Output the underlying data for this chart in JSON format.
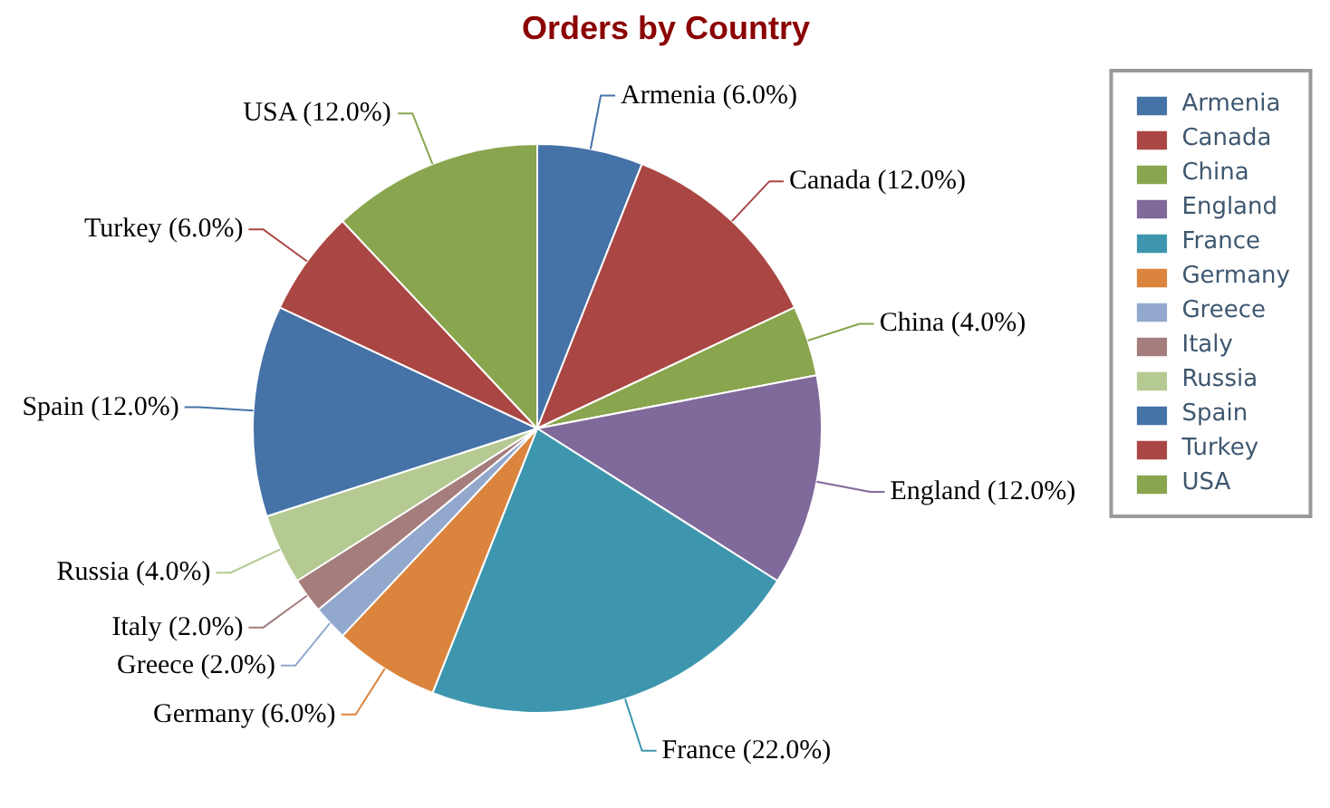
{
  "chart_data": {
    "type": "pie",
    "title": "Orders by Country",
    "categories": [
      "Armenia",
      "Canada",
      "China",
      "England",
      "France",
      "Germany",
      "Greece",
      "Italy",
      "Russia",
      "Spain",
      "Turkey",
      "USA"
    ],
    "values": [
      6,
      12,
      4,
      12,
      22,
      6,
      2,
      2,
      4,
      12,
      6,
      12
    ],
    "colors": [
      "#4572a7",
      "#aa4643",
      "#89a54e",
      "#80699b",
      "#3d96ae",
      "#db843d",
      "#92a8cd",
      "#a47d7c",
      "#b5ca92",
      "#4572a7",
      "#aa4643",
      "#89a54e"
    ],
    "value_labels": [
      "Armenia (6.0%)",
      "Canada (12.0%)",
      "China (4.0%)",
      "England (12.0%)",
      "France (22.0%)",
      "Germany (6.0%)",
      "Greece (2.0%)",
      "Italy (2.0%)",
      "Russia (4.0%)",
      "Spain (12.0%)",
      "Turkey (6.0%)",
      "USA (12.0%)"
    ],
    "legend": "top right"
  }
}
